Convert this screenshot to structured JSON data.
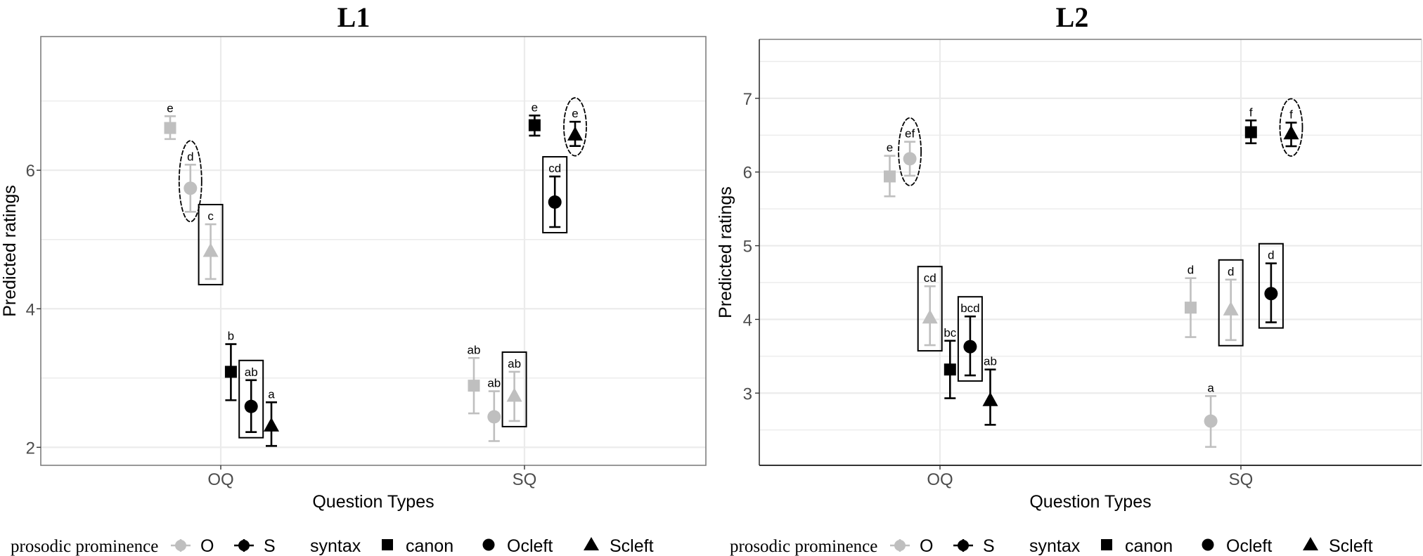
{
  "chart_data": [
    {
      "type": "scatter",
      "title": "L1",
      "xlabel": "Question Types",
      "ylabel": "Predicted ratings",
      "categories": [
        "OQ",
        "SQ"
      ],
      "yticks": [
        2,
        4,
        6
      ],
      "ylim": [
        1.74,
        7.93
      ],
      "grid": true,
      "series": [
        {
          "name": "O canon",
          "prominence": "O",
          "syntax": "canon",
          "values": [
            6.61,
            2.89
          ],
          "lower": [
            6.45,
            2.49
          ],
          "upper": [
            6.78,
            3.29
          ],
          "letters": [
            "e",
            "ab"
          ]
        },
        {
          "name": "O Ocleft",
          "prominence": "O",
          "syntax": "Ocleft",
          "values": [
            5.74,
            2.44
          ],
          "lower": [
            5.4,
            2.09
          ],
          "upper": [
            6.08,
            2.81
          ],
          "letters": [
            "d",
            "ab"
          ]
        },
        {
          "name": "O Scleft",
          "prominence": "O",
          "syntax": "Scleft",
          "values": [
            4.83,
            2.74
          ],
          "lower": [
            4.43,
            2.38
          ],
          "upper": [
            5.22,
            3.09
          ],
          "letters": [
            "c",
            "ab"
          ]
        },
        {
          "name": "S canon",
          "prominence": "S",
          "syntax": "canon",
          "values": [
            3.09,
            6.65
          ],
          "lower": [
            2.68,
            6.5
          ],
          "upper": [
            3.49,
            6.79
          ],
          "letters": [
            "b",
            "e"
          ]
        },
        {
          "name": "S Ocleft",
          "prominence": "S",
          "syntax": "Ocleft",
          "values": [
            2.59,
            5.54
          ],
          "lower": [
            2.22,
            5.18
          ],
          "upper": [
            2.97,
            5.91
          ],
          "letters": [
            "ab",
            "cd"
          ]
        },
        {
          "name": "S Scleft",
          "prominence": "S",
          "syntax": "Scleft",
          "values": [
            2.31,
            6.51
          ],
          "lower": [
            2.02,
            6.35
          ],
          "upper": [
            2.65,
            6.7
          ],
          "letters": [
            "a",
            "e"
          ]
        }
      ],
      "annotations": [
        {
          "shape": "ellipse",
          "series": "O Ocleft",
          "category": "OQ"
        },
        {
          "shape": "box",
          "series": "O Scleft",
          "category": "OQ"
        },
        {
          "shape": "box",
          "series": "S Ocleft",
          "category": "OQ"
        },
        {
          "shape": "box",
          "series": "O Scleft",
          "category": "SQ"
        },
        {
          "shape": "box",
          "series": "S Ocleft",
          "category": "SQ"
        },
        {
          "shape": "ellipse",
          "series": "S Scleft",
          "category": "SQ"
        }
      ]
    },
    {
      "type": "scatter",
      "title": "L2",
      "xlabel": "Question Types",
      "ylabel": "Predicted ratings",
      "categories": [
        "OQ",
        "SQ"
      ],
      "yticks": [
        3,
        4,
        5,
        6,
        7
      ],
      "ylim": [
        2.02,
        7.8
      ],
      "grid": true,
      "series": [
        {
          "name": "O canon",
          "prominence": "O",
          "syntax": "canon",
          "values": [
            5.94,
            4.16
          ],
          "lower": [
            5.67,
            3.76
          ],
          "upper": [
            6.22,
            4.56
          ],
          "letters": [
            "e",
            "d"
          ]
        },
        {
          "name": "O Ocleft",
          "prominence": "O",
          "syntax": "Ocleft",
          "values": [
            6.18,
            2.62
          ],
          "lower": [
            5.95,
            2.27
          ],
          "upper": [
            6.41,
            2.96
          ],
          "letters": [
            "ef",
            "a"
          ]
        },
        {
          "name": "O Scleft",
          "prominence": "O",
          "syntax": "Scleft",
          "values": [
            4.02,
            4.13
          ],
          "lower": [
            3.65,
            3.72
          ],
          "upper": [
            4.45,
            4.54
          ],
          "letters": [
            "cd",
            "d"
          ]
        },
        {
          "name": "S canon",
          "prominence": "S",
          "syntax": "canon",
          "values": [
            3.32,
            6.54
          ],
          "lower": [
            2.93,
            6.39
          ],
          "upper": [
            3.71,
            6.7
          ],
          "letters": [
            "bc",
            "f"
          ]
        },
        {
          "name": "S Ocleft",
          "prominence": "S",
          "syntax": "Ocleft",
          "values": [
            3.63,
            4.35
          ],
          "lower": [
            3.24,
            3.96
          ],
          "upper": [
            4.04,
            4.76
          ],
          "letters": [
            "bcd",
            "d"
          ]
        },
        {
          "name": "S Scleft",
          "prominence": "S",
          "syntax": "Scleft",
          "values": [
            2.9,
            6.52
          ],
          "lower": [
            2.57,
            6.35
          ],
          "upper": [
            3.32,
            6.67
          ],
          "letters": [
            "ab",
            "f"
          ]
        }
      ],
      "annotations": [
        {
          "shape": "ellipse",
          "series": "O Ocleft",
          "category": "OQ"
        },
        {
          "shape": "box",
          "series": "O Scleft",
          "category": "OQ"
        },
        {
          "shape": "box",
          "series": "S Ocleft",
          "category": "OQ"
        },
        {
          "shape": "box",
          "series": "O Scleft",
          "category": "SQ"
        },
        {
          "shape": "box",
          "series": "S Ocleft",
          "category": "SQ"
        },
        {
          "shape": "ellipse",
          "series": "S Scleft",
          "category": "SQ"
        }
      ]
    }
  ],
  "legend": {
    "prominence_title": "prosodic prominence",
    "prominence": [
      {
        "label": "O",
        "color": "#bfbfbf"
      },
      {
        "label": "S",
        "color": "#000000"
      }
    ],
    "syntax_title": "syntax",
    "syntax": [
      {
        "label": "canon",
        "shape": "square"
      },
      {
        "label": "Ocleft",
        "shape": "circle"
      },
      {
        "label": "Scleft",
        "shape": "triangle"
      }
    ]
  },
  "colors": {
    "O": "#bfbfbf",
    "S": "#000000",
    "grid": "#ebebeb",
    "panel_border": "#7f7f7f",
    "tick_text": "#4d4d4d"
  }
}
